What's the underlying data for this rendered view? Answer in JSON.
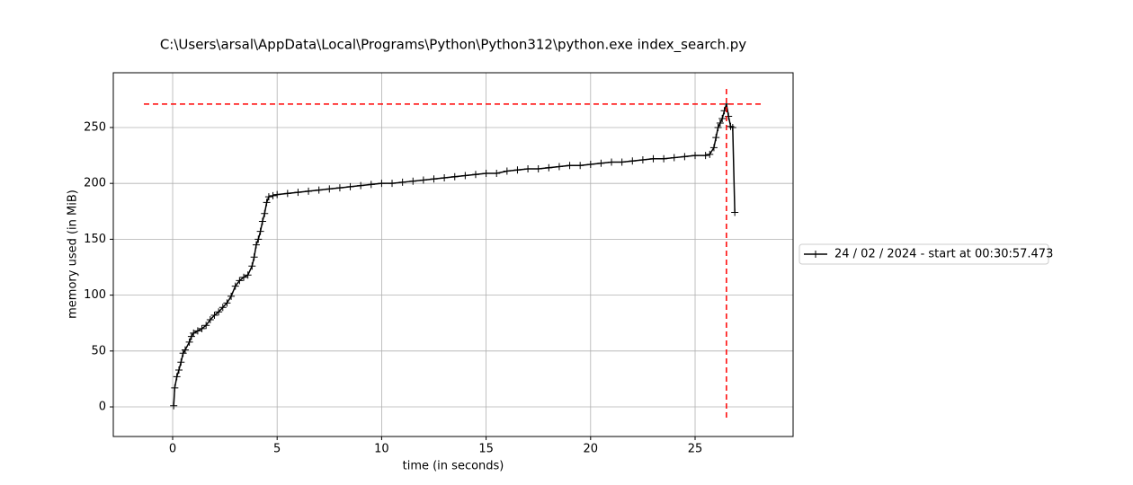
{
  "chart_data": {
    "type": "line",
    "title": "C:\\Users\\arsal\\AppData\\Local\\Programs\\Python\\Python312\\python.exe index_search.py",
    "x_label": "time (in seconds)",
    "y_label": "memory used (in MiB)",
    "xlim": [
      -2.84,
      29.69
    ],
    "ylim": [
      -26.5,
      299
    ],
    "xticks": [
      0,
      5,
      10,
      15,
      20,
      25
    ],
    "yticks": [
      0,
      50,
      100,
      150,
      200,
      250
    ],
    "grid": true,
    "legend": "right",
    "series": [
      {
        "name": "24 / 02 / 2024 - start at 00:30:57.473",
        "color": "#000000",
        "x": [
          0.05,
          0.1,
          0.2,
          0.3,
          0.4,
          0.5,
          0.6,
          0.8,
          0.9,
          1.0,
          1.2,
          1.4,
          1.6,
          1.8,
          2.0,
          2.2,
          2.4,
          2.6,
          2.8,
          3.0,
          3.2,
          3.4,
          3.6,
          3.8,
          3.9,
          4.0,
          4.1,
          4.2,
          4.3,
          4.4,
          4.5,
          4.6,
          4.8,
          5.0,
          5.5,
          6.0,
          6.5,
          7.0,
          7.5,
          8.0,
          8.5,
          9.0,
          9.5,
          10.0,
          10.5,
          11.0,
          11.5,
          12.0,
          12.5,
          13.0,
          13.5,
          14.0,
          14.5,
          15.0,
          15.5,
          16.0,
          16.5,
          17.0,
          17.5,
          18.0,
          18.5,
          19.0,
          19.5,
          20.0,
          20.5,
          21.0,
          21.5,
          22.0,
          22.5,
          23.0,
          23.5,
          24.0,
          24.5,
          25.0,
          25.5,
          25.7,
          25.9,
          26.0,
          26.1,
          26.2,
          26.3,
          26.4,
          26.5,
          26.6,
          26.7,
          26.8,
          26.9
        ],
        "values": [
          1,
          17,
          27,
          33,
          40,
          48,
          51,
          58,
          63,
          66,
          68,
          70,
          73,
          78,
          82,
          85,
          89,
          93,
          99,
          108,
          113,
          116,
          118,
          126,
          134,
          145,
          150,
          157,
          166,
          173,
          183,
          188,
          189,
          190,
          191,
          192,
          193,
          194,
          195,
          196,
          197,
          198,
          199,
          200,
          200,
          201,
          202,
          203,
          204,
          205,
          206,
          207,
          208,
          209,
          209,
          211,
          212,
          213,
          213,
          214,
          215,
          216,
          216,
          217,
          218,
          219,
          219,
          220,
          221,
          222,
          222,
          223,
          224,
          225,
          225,
          226,
          232,
          241,
          250,
          254,
          258,
          265,
          271,
          260,
          251,
          250,
          174
        ]
      }
    ],
    "peak": {
      "x": 26.5,
      "y": 271,
      "color": "#ff0000"
    }
  }
}
